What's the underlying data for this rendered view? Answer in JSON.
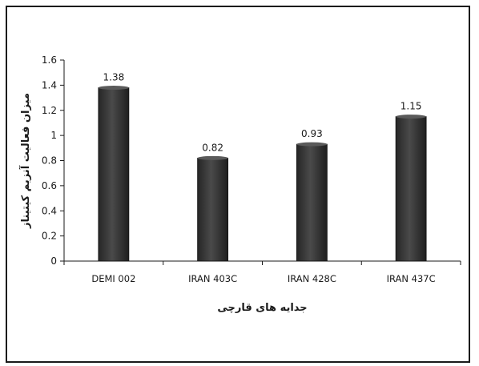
{
  "chart_data": {
    "type": "bar",
    "categories": [
      "DEMI 002",
      "IRAN 403C",
      "IRAN 428C",
      "IRAN 437C"
    ],
    "values": [
      1.38,
      0.82,
      0.93,
      1.15
    ],
    "data_labels": [
      "1.38",
      "0.82",
      "0.93",
      "1.15"
    ],
    "xlabel": "جدایه های قارچی",
    "ylabel": "میزان فعالیت آنزیم کیتیناز",
    "ylim": [
      0,
      1.6
    ],
    "yticks": [
      "0",
      "0.2",
      "0.4",
      "0.6",
      "0.8",
      "1",
      "1.2",
      "1.4",
      "1.6"
    ],
    "grid": false,
    "legend": "none",
    "bar_color": "#3a3a3a"
  }
}
